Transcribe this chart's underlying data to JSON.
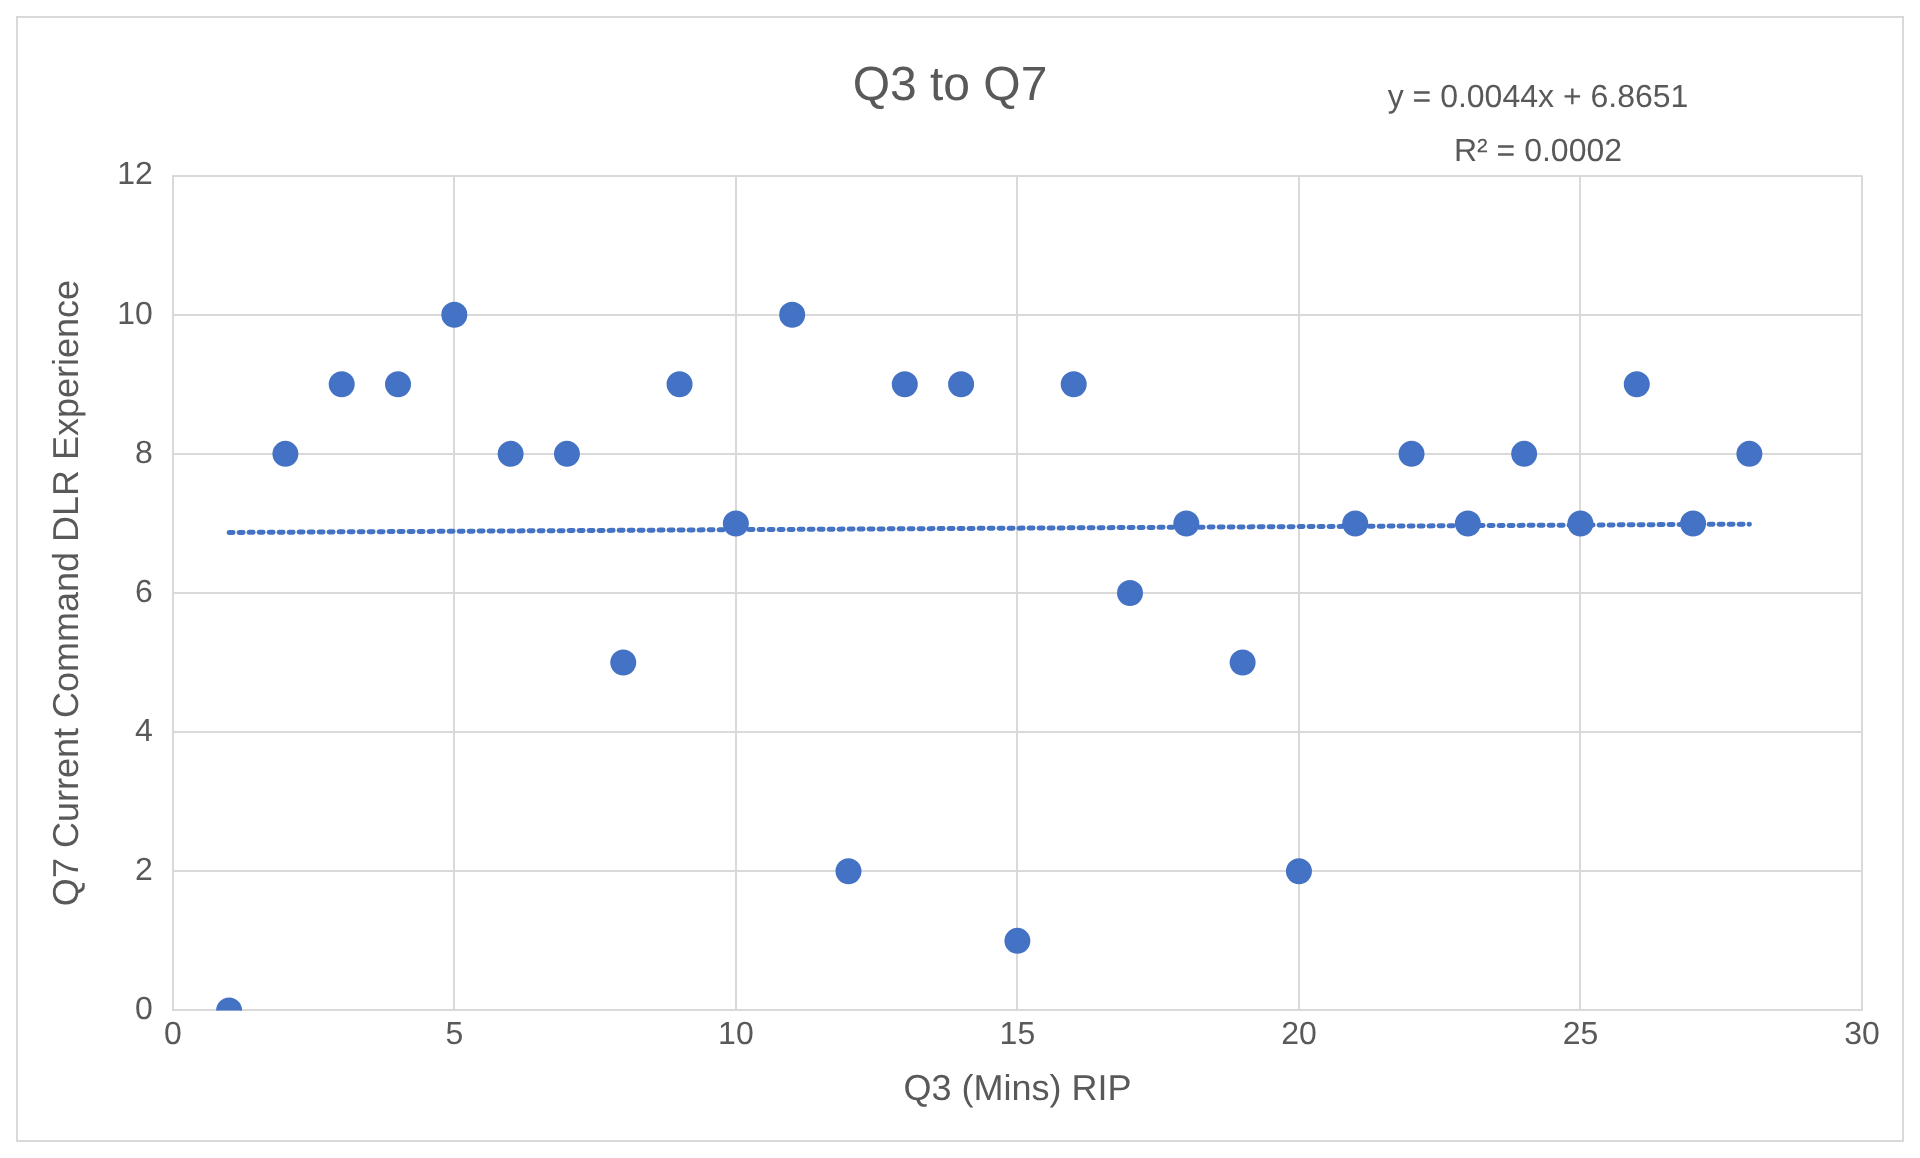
{
  "chart_data": {
    "type": "scatter",
    "title": "Q3 to Q7",
    "xlabel": "Q3 (Mins) RIP",
    "ylabel": "Q7 Current Command DLR Experience",
    "x": [
      1,
      2,
      3,
      4,
      5,
      6,
      7,
      8,
      9,
      10,
      11,
      12,
      13,
      14,
      15,
      16,
      17,
      18,
      19,
      20,
      21,
      22,
      23,
      24,
      25,
      26,
      27,
      28
    ],
    "series": [
      {
        "color": "#4472c4",
        "marker": "circle",
        "values": [
          0,
          8,
          9,
          9,
          10,
          8,
          8,
          5,
          9,
          7,
          10,
          2,
          9,
          9,
          1,
          9,
          6,
          7,
          5,
          2,
          7,
          8,
          7,
          8,
          7,
          9,
          7,
          8
        ]
      },
      {
        "type": "line",
        "color": "#4472c4",
        "x": [
          1,
          28
        ],
        "values": [
          6.87,
          6.99
        ],
        "line_style": "dotted",
        "marker": "none"
      }
    ],
    "annotations": [
      "y = 0.0044x + 6.8651",
      "R² = 0.0002"
    ],
    "xlim": [
      0,
      30
    ],
    "xticks": [
      0,
      5,
      10,
      15,
      20,
      25,
      30
    ],
    "ylim": [
      0,
      12
    ],
    "yticks": [
      0,
      2,
      4,
      6,
      8,
      10,
      12
    ],
    "grid": true,
    "legend": false
  }
}
